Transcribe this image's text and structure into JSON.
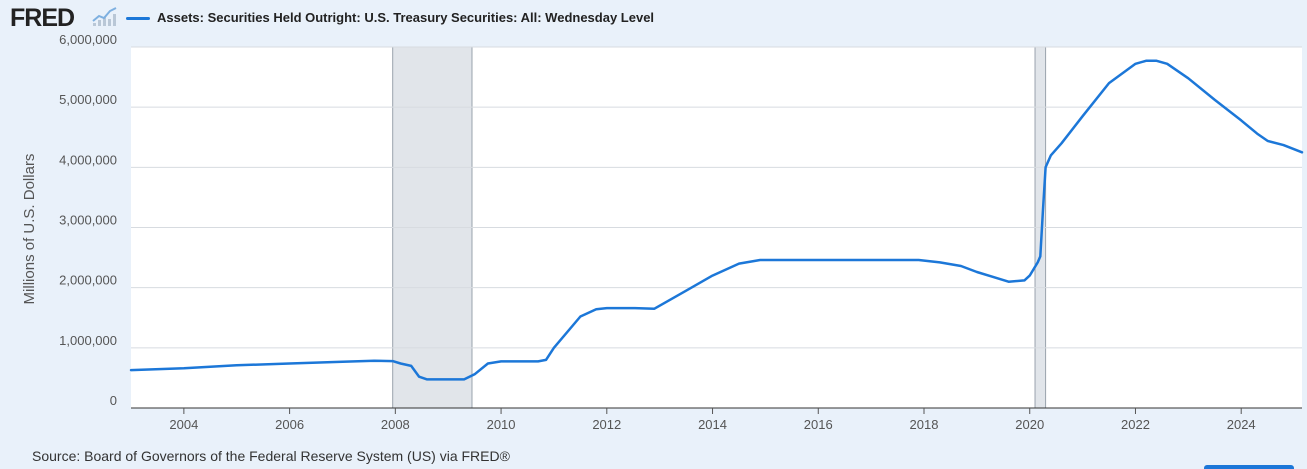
{
  "brand": {
    "name": "FRED"
  },
  "chart_data": {
    "type": "line",
    "title": "Assets: Securities Held Outright: U.S. Treasury Securities: All: Wednesday Level",
    "ylabel": "Millions of U.S. Dollars",
    "xlabel": "",
    "xlim": [
      2003.0,
      2025.15
    ],
    "ylim": [
      0,
      6000000
    ],
    "x_ticks": [
      2004,
      2006,
      2008,
      2010,
      2012,
      2014,
      2016,
      2018,
      2020,
      2022,
      2024
    ],
    "x_tick_labels": [
      "2004",
      "2006",
      "2008",
      "2010",
      "2012",
      "2014",
      "2016",
      "2018",
      "2020",
      "2022",
      "2024"
    ],
    "y_ticks": [
      0,
      1000000,
      2000000,
      3000000,
      4000000,
      5000000,
      6000000
    ],
    "y_tick_labels": [
      "0",
      "1,000,000",
      "2,000,000",
      "3,000,000",
      "4,000,000",
      "5,000,000",
      "6,000,000"
    ],
    "grid": "horizontal",
    "legend": "top-left",
    "recessions": [
      [
        2007.95,
        2009.45
      ],
      [
        2020.1,
        2020.3
      ]
    ],
    "series": [
      {
        "name": "Assets: Securities Held Outright: U.S. Treasury Securities: All: Wednesday Level",
        "color": "#1c77d8",
        "x": [
          2003.0,
          2004.0,
          2005.0,
          2006.0,
          2007.0,
          2007.6,
          2007.95,
          2008.1,
          2008.3,
          2008.45,
          2008.6,
          2009.0,
          2009.3,
          2009.5,
          2009.75,
          2010.0,
          2010.5,
          2010.7,
          2010.85,
          2011.0,
          2011.5,
          2011.8,
          2012.0,
          2012.5,
          2012.9,
          2013.5,
          2014.0,
          2014.5,
          2014.9,
          2015.5,
          2016.5,
          2017.5,
          2017.9,
          2018.3,
          2018.7,
          2019.0,
          2019.3,
          2019.6,
          2019.9,
          2020.0,
          2020.15,
          2020.2,
          2020.25,
          2020.3,
          2020.4,
          2020.6,
          2021.0,
          2021.5,
          2022.0,
          2022.2,
          2022.4,
          2022.6,
          2023.0,
          2023.5,
          2024.0,
          2024.3,
          2024.5,
          2024.8,
          2025.15
        ],
        "values": [
          630000,
          660000,
          710000,
          740000,
          770000,
          785000,
          780000,
          740000,
          700000,
          520000,
          475000,
          475000,
          475000,
          560000,
          740000,
          775000,
          775000,
          775000,
          800000,
          1000000,
          1520000,
          1640000,
          1660000,
          1660000,
          1650000,
          1950000,
          2200000,
          2400000,
          2460000,
          2460000,
          2460000,
          2460000,
          2460000,
          2420000,
          2360000,
          2260000,
          2180000,
          2100000,
          2120000,
          2200000,
          2420000,
          2520000,
          3300000,
          4000000,
          4200000,
          4400000,
          4850000,
          5400000,
          5720000,
          5770000,
          5770000,
          5720000,
          5480000,
          5120000,
          4780000,
          4560000,
          4440000,
          4370000,
          4250000
        ]
      }
    ]
  },
  "source": "Source: Board of Governors of the Federal Reserve System (US) via FRED®"
}
